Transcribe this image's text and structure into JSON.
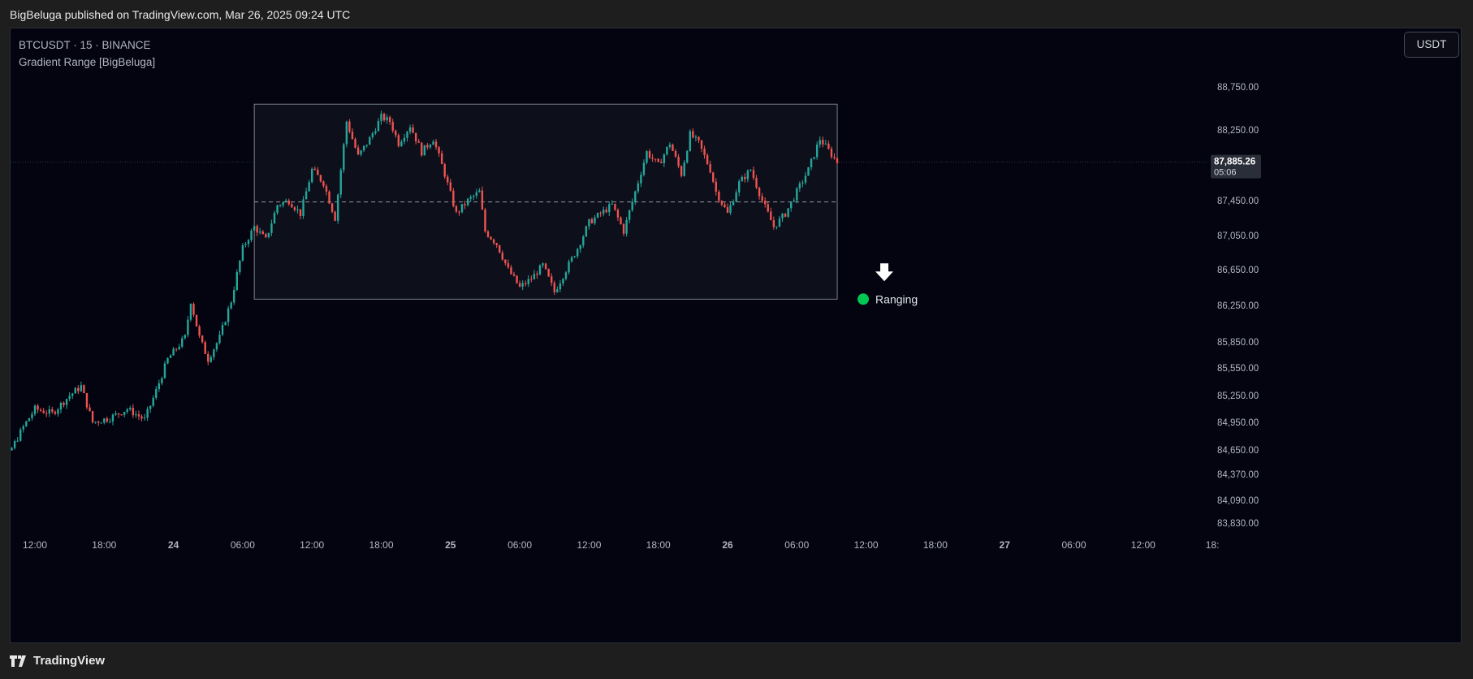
{
  "header": {
    "published": "BigBeluga published on TradingView.com, Mar 26, 2025 09:24 UTC"
  },
  "legend": {
    "symbol": "BTCUSDT · 15 · BINANCE",
    "indicator": "Gradient Range [BigBeluga]"
  },
  "currency_button": "USDT",
  "footer": {
    "brand": "TradingView",
    "logo_icon": "tradingview-logo-icon"
  },
  "colors": {
    "up": "#26a69a",
    "down": "#ef5350",
    "background": "#030410",
    "range_box": "#b2b5be",
    "ranging_dot": "#00c853"
  },
  "chart_data": {
    "type": "candlestick",
    "symbol": "BTCUSDT",
    "interval": "15",
    "exchange": "BINANCE",
    "last_price": "87,885.26",
    "countdown": "05:06",
    "y_ticks": [
      "88,750.00",
      "88,250.00",
      "87,450.00",
      "87,050.00",
      "86,650.00",
      "86,250.00",
      "85,850.00",
      "85,550.00",
      "85,250.00",
      "84,950.00",
      "84,650.00",
      "84,370.00",
      "84,090.00",
      "83,830.00"
    ],
    "x_ticks": [
      "12:00",
      "18:00",
      "24",
      "06:00",
      "12:00",
      "18:00",
      "25",
      "06:00",
      "12:00",
      "18:00",
      "26",
      "06:00",
      "12:00",
      "18:00",
      "27",
      "06:00",
      "12:00",
      "18:"
    ],
    "range_box": {
      "top": 88550,
      "bottom": 86320,
      "mid": 87435,
      "start": "Mar 24 07:00",
      "end": "Mar 26 09:30"
    },
    "range_label": "Ranging",
    "signal": "down-arrow",
    "price_path": [
      [
        "Mar 23 07:00",
        84350
      ],
      [
        "Mar 23 08:30",
        84800
      ],
      [
        "Mar 23 09:30",
        84550
      ],
      [
        "Mar 23 11:00",
        84900
      ],
      [
        "Mar 23 12:00",
        85100
      ],
      [
        "Mar 23 13:30",
        85050
      ],
      [
        "Mar 23 15:00",
        85250
      ],
      [
        "Mar 23 16:00",
        85350
      ],
      [
        "Mar 23 17:00",
        84950
      ],
      [
        "Mar 23 18:30",
        85000
      ],
      [
        "Mar 23 20:00",
        85100
      ],
      [
        "Mar 23 21:30",
        84980
      ],
      [
        "Mar 23 22:30",
        85300
      ],
      [
        "Mar 23 23:30",
        85650
      ],
      [
        "Mar 24 01:00",
        85900
      ],
      [
        "Mar 24 01:30",
        86300
      ],
      [
        "Mar 24 02:15",
        85900
      ],
      [
        "Mar 24 03:00",
        85650
      ],
      [
        "Mar 24 04:00",
        85900
      ],
      [
        "Mar 24 05:00",
        86300
      ],
      [
        "Mar 24 06:00",
        86900
      ],
      [
        "Mar 24 07:00",
        87150
      ],
      [
        "Mar 24 08:00",
        87000
      ],
      [
        "Mar 24 09:00",
        87400
      ],
      [
        "Mar 24 10:00",
        87450
      ],
      [
        "Mar 24 11:00",
        87300
      ],
      [
        "Mar 24 12:00",
        87800
      ],
      [
        "Mar 24 13:00",
        87650
      ],
      [
        "Mar 24 14:00",
        87250
      ],
      [
        "Mar 24 15:00",
        88350
      ],
      [
        "Mar 24 16:00",
        87950
      ],
      [
        "Mar 24 17:00",
        88150
      ],
      [
        "Mar 24 18:00",
        88400
      ],
      [
        "Mar 24 18:45",
        88350
      ],
      [
        "Mar 24 19:30",
        88100
      ],
      [
        "Mar 24 20:30",
        88300
      ],
      [
        "Mar 24 21:30",
        88000
      ],
      [
        "Mar 24 22:30",
        88150
      ],
      [
        "Mar 24 23:30",
        87750
      ],
      [
        "Mar 25 00:30",
        87300
      ],
      [
        "Mar 25 01:30",
        87450
      ],
      [
        "Mar 25 02:30",
        87550
      ],
      [
        "Mar 25 03:00",
        87100
      ],
      [
        "Mar 25 04:00",
        86950
      ],
      [
        "Mar 25 05:00",
        86650
      ],
      [
        "Mar 25 06:00",
        86450
      ],
      [
        "Mar 25 07:00",
        86550
      ],
      [
        "Mar 25 08:00",
        86700
      ],
      [
        "Mar 25 09:00",
        86400
      ],
      [
        "Mar 25 10:00",
        86650
      ],
      [
        "Mar 25 11:00",
        86900
      ],
      [
        "Mar 25 12:00",
        87200
      ],
      [
        "Mar 25 13:00",
        87300
      ],
      [
        "Mar 25 14:00",
        87400
      ],
      [
        "Mar 25 15:00",
        87100
      ],
      [
        "Mar 25 16:00",
        87550
      ],
      [
        "Mar 25 17:00",
        88000
      ],
      [
        "Mar 25 18:00",
        87850
      ],
      [
        "Mar 25 19:00",
        88100
      ],
      [
        "Mar 25 20:00",
        87750
      ],
      [
        "Mar 25 20:45",
        88200
      ],
      [
        "Mar 25 21:30",
        88100
      ],
      [
        "Mar 25 22:30",
        87800
      ],
      [
        "Mar 25 23:00",
        87550
      ],
      [
        "Mar 26 00:00",
        87300
      ],
      [
        "Mar 26 01:00",
        87650
      ],
      [
        "Mar 26 02:00",
        87800
      ],
      [
        "Mar 26 03:00",
        87450
      ],
      [
        "Mar 26 04:00",
        87150
      ],
      [
        "Mar 26 05:00",
        87300
      ],
      [
        "Mar 26 06:00",
        87550
      ],
      [
        "Mar 26 07:00",
        87800
      ],
      [
        "Mar 26 08:00",
        88150
      ],
      [
        "Mar 26 09:30",
        87885
      ]
    ]
  }
}
